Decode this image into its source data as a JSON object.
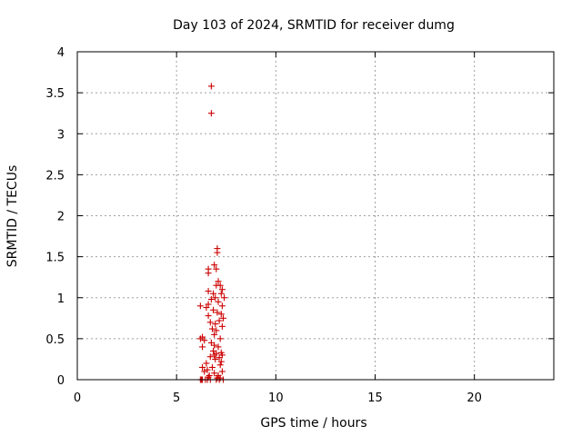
{
  "chart_data": {
    "type": "scatter",
    "title": "Day 103 of 2024, SRMTID for receiver dumg",
    "xlabel": "GPS time / hours",
    "ylabel": "SRMTID / TECUs",
    "xlim": [
      0,
      24
    ],
    "ylim": [
      0,
      4
    ],
    "xticks": [
      0,
      5,
      10,
      15,
      20
    ],
    "xtick_labels": [
      "0",
      "5",
      "10",
      "15",
      "20"
    ],
    "yticks": [
      0,
      0.5,
      1,
      1.5,
      2,
      2.5,
      3,
      3.5,
      4
    ],
    "ytick_labels": [
      "0",
      "0.5",
      "1",
      "1.5",
      "2",
      "2.5",
      "3",
      "3.5",
      "4"
    ],
    "grid": true,
    "marker": "+",
    "color": "#cc0000",
    "series": [
      {
        "name": "dumg",
        "points": [
          [
            6.75,
            3.58
          ],
          [
            6.75,
            3.25
          ],
          [
            7.05,
            1.6
          ],
          [
            7.05,
            1.55
          ],
          [
            6.9,
            1.4
          ],
          [
            7.0,
            1.35
          ],
          [
            6.6,
            1.35
          ],
          [
            6.6,
            1.3
          ],
          [
            7.1,
            1.2
          ],
          [
            7.2,
            1.15
          ],
          [
            7.0,
            1.15
          ],
          [
            7.3,
            1.1
          ],
          [
            6.6,
            1.08
          ],
          [
            6.85,
            1.05
          ],
          [
            7.25,
            1.05
          ],
          [
            7.4,
            1.0
          ],
          [
            6.95,
            1.0
          ],
          [
            6.75,
            0.98
          ],
          [
            7.1,
            0.95
          ],
          [
            6.6,
            0.92
          ],
          [
            6.2,
            0.9
          ],
          [
            6.5,
            0.88
          ],
          [
            7.3,
            0.9
          ],
          [
            6.85,
            0.85
          ],
          [
            7.05,
            0.82
          ],
          [
            7.25,
            0.8
          ],
          [
            6.6,
            0.78
          ],
          [
            7.35,
            0.75
          ],
          [
            7.15,
            0.72
          ],
          [
            6.7,
            0.7
          ],
          [
            6.95,
            0.68
          ],
          [
            7.3,
            0.65
          ],
          [
            6.8,
            0.62
          ],
          [
            7.0,
            0.6
          ],
          [
            6.9,
            0.55
          ],
          [
            6.3,
            0.52
          ],
          [
            6.2,
            0.5
          ],
          [
            6.4,
            0.48
          ],
          [
            7.2,
            0.5
          ],
          [
            6.75,
            0.45
          ],
          [
            6.9,
            0.42
          ],
          [
            7.1,
            0.4
          ],
          [
            6.3,
            0.4
          ],
          [
            6.85,
            0.35
          ],
          [
            7.0,
            0.32
          ],
          [
            7.25,
            0.33
          ],
          [
            7.3,
            0.3
          ],
          [
            6.9,
            0.3
          ],
          [
            6.7,
            0.28
          ],
          [
            7.15,
            0.27
          ],
          [
            6.95,
            0.25
          ],
          [
            7.25,
            0.22
          ],
          [
            6.5,
            0.2
          ],
          [
            7.2,
            0.18
          ],
          [
            6.8,
            0.15
          ],
          [
            6.3,
            0.15
          ],
          [
            6.55,
            0.12
          ],
          [
            6.4,
            0.1
          ],
          [
            7.3,
            0.1
          ],
          [
            6.9,
            0.08
          ],
          [
            7.1,
            0.05
          ],
          [
            6.65,
            0.05
          ],
          [
            7.05,
            0.02
          ],
          [
            6.6,
            0.03
          ],
          [
            6.2,
            0.0
          ],
          [
            6.25,
            0.0
          ],
          [
            6.3,
            0.0
          ],
          [
            6.45,
            0.0
          ],
          [
            6.55,
            0.0
          ],
          [
            6.7,
            0.0
          ],
          [
            7.0,
            0.0
          ],
          [
            7.15,
            0.0
          ],
          [
            7.35,
            0.0
          ],
          [
            7.2,
            0.02
          ]
        ]
      }
    ]
  }
}
